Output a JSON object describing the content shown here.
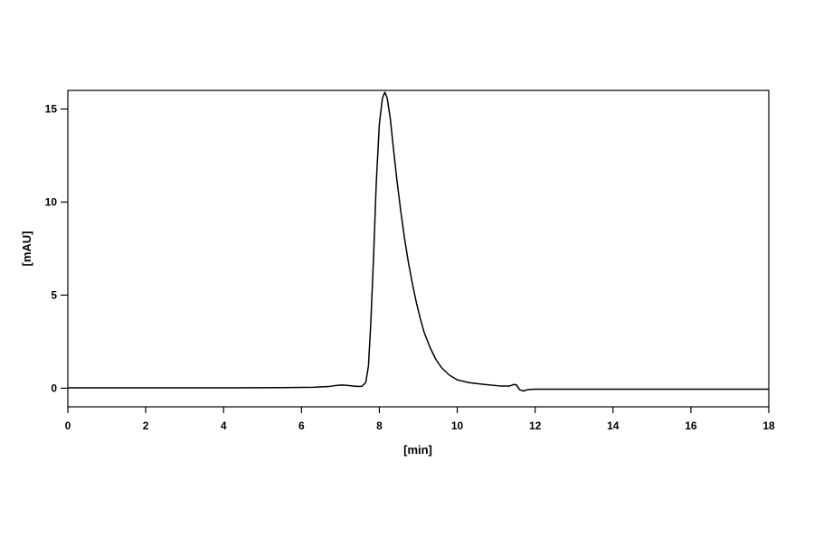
{
  "chart_data": {
    "type": "line",
    "title": "",
    "xlabel": "[min]",
    "ylabel": "[mAU]",
    "xlim": [
      0,
      18
    ],
    "ylim": [
      -1,
      16
    ],
    "x_ticks": [
      0,
      2,
      4,
      6,
      8,
      10,
      12,
      14,
      16,
      18
    ],
    "y_ticks": [
      0,
      5,
      10,
      15
    ],
    "grid": false,
    "legend": "none",
    "series": [
      {
        "color": "#000000",
        "x": [
          0,
          2,
          4,
          5.5,
          6.3,
          6.7,
          6.9,
          7.05,
          7.2,
          7.4,
          7.55,
          7.65,
          7.72,
          7.78,
          7.85,
          7.92,
          8.0,
          8.08,
          8.14,
          8.2,
          8.28,
          8.36,
          8.45,
          8.55,
          8.65,
          8.75,
          8.85,
          8.95,
          9.05,
          9.15,
          9.3,
          9.45,
          9.6,
          9.8,
          10.0,
          10.3,
          10.7,
          11.1,
          11.35,
          11.45,
          11.52,
          11.6,
          11.7,
          11.8,
          12.0,
          12.3,
          13.0,
          14.0,
          16.0,
          18.0
        ],
        "y": [
          0.02,
          0.02,
          0.02,
          0.03,
          0.05,
          0.09,
          0.15,
          0.17,
          0.15,
          0.1,
          0.1,
          0.3,
          1.2,
          3.5,
          7.0,
          11.0,
          14.2,
          15.6,
          15.9,
          15.6,
          14.5,
          12.9,
          11.2,
          9.5,
          8.0,
          6.7,
          5.6,
          4.6,
          3.75,
          3.0,
          2.2,
          1.55,
          1.1,
          0.7,
          0.45,
          0.3,
          0.2,
          0.12,
          0.12,
          0.2,
          0.18,
          -0.08,
          -0.15,
          -0.08,
          -0.05,
          -0.05,
          -0.05,
          -0.05,
          -0.05,
          -0.05
        ]
      }
    ]
  }
}
